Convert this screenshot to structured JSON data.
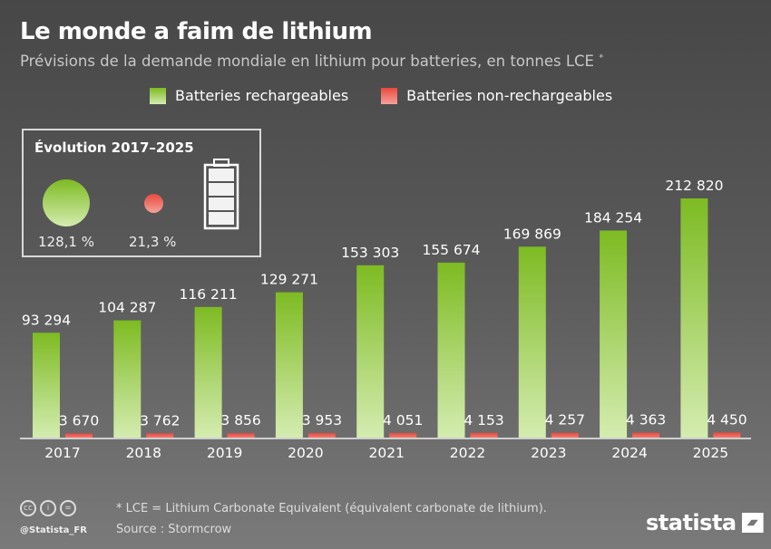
{
  "header": {
    "title": "Le monde a faim de lithium",
    "subtitle": "Prévisions de la demande mondiale en lithium pour batteries, en tonnes LCE",
    "subtitle_mark": "*"
  },
  "colors": {
    "rechargeable": "#7dbb22",
    "rechargeable_light": "#d4ecb0",
    "non_rechargeable": "#e8493e",
    "background": "#595959"
  },
  "inset": {
    "title": "Évolution 2017–2025",
    "rechargeable_growth": "128,1 %",
    "non_rechargeable_growth": "21,3 %",
    "icon": "battery-icon"
  },
  "chart_data": {
    "type": "bar",
    "categories": [
      "2017",
      "2018",
      "2019",
      "2020",
      "2021",
      "2022",
      "2023",
      "2024",
      "2025"
    ],
    "series": [
      {
        "name": "Batteries rechargeables",
        "values": [
          93294,
          104287,
          116211,
          129271,
          153303,
          155674,
          169869,
          184254,
          212820
        ],
        "labels": [
          "93 294",
          "104 287",
          "116 211",
          "129 271",
          "153 303",
          "155 674",
          "169 869",
          "184 254",
          "212 820"
        ]
      },
      {
        "name": "Batteries non-rechargeables",
        "values": [
          3670,
          3762,
          3856,
          3953,
          4051,
          4153,
          4257,
          4363,
          4450
        ],
        "labels": [
          "3 670",
          "3 762",
          "3 856",
          "3 953",
          "4 051",
          "4 153",
          "4 257",
          "4 363",
          "4 450"
        ]
      }
    ],
    "legend": "top",
    "grid": false
  },
  "footer": {
    "footnote": "* LCE = Lithium Carbonate Equivalent (équivalent carbonate de lithium).",
    "source": "Source : Stormcrow",
    "handle": "@Statista_FR",
    "brand": "statista"
  }
}
